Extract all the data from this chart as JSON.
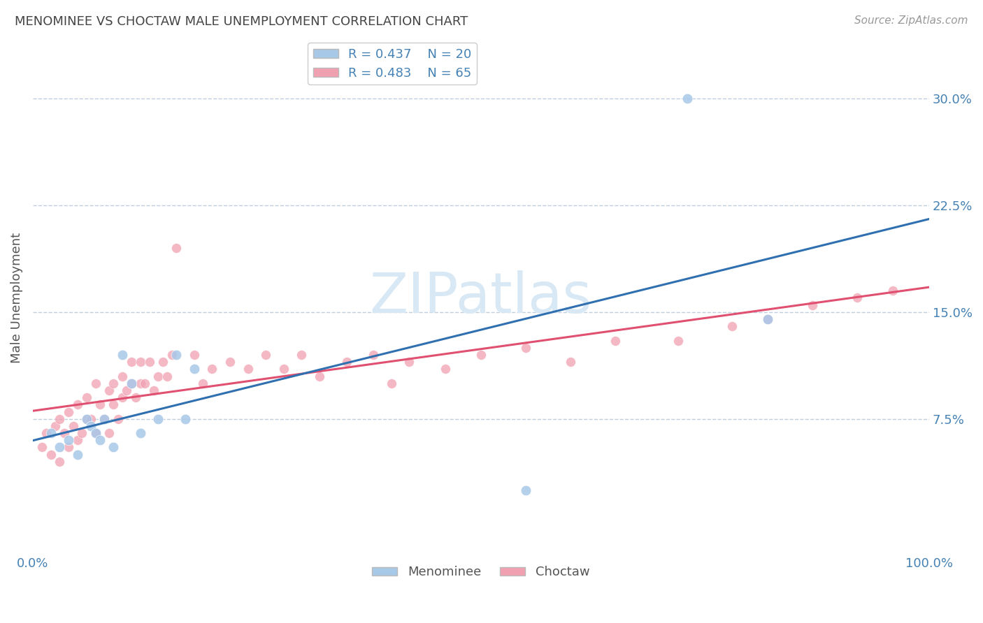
{
  "title": "MENOMINEE VS CHOCTAW MALE UNEMPLOYMENT CORRELATION CHART",
  "source": "Source: ZipAtlas.com",
  "ylabel": "Male Unemployment",
  "xlim": [
    0.0,
    1.0
  ],
  "ylim": [
    -0.02,
    0.34
  ],
  "plot_ylim": [
    -0.02,
    0.34
  ],
  "yticks": [
    0.075,
    0.15,
    0.225,
    0.3
  ],
  "ytick_labels": [
    "7.5%",
    "15.0%",
    "22.5%",
    "30.0%"
  ],
  "xtick_labels": [
    "0.0%",
    "100.0%"
  ],
  "menominee_R": 0.437,
  "menominee_N": 20,
  "choctaw_R": 0.483,
  "choctaw_N": 65,
  "menominee_color": "#a8c8e8",
  "choctaw_color": "#f0a0b0",
  "menominee_line_color": "#3070b0",
  "choctaw_line_color": "#e05070",
  "background_color": "#ffffff",
  "grid_color": "#c0cfe0",
  "watermark_color": "#d8e8f4",
  "menominee_x": [
    0.02,
    0.03,
    0.04,
    0.05,
    0.06,
    0.065,
    0.07,
    0.075,
    0.08,
    0.09,
    0.1,
    0.11,
    0.12,
    0.14,
    0.16,
    0.17,
    0.18,
    0.55,
    0.73,
    0.82
  ],
  "menominee_y": [
    0.065,
    0.055,
    0.06,
    0.05,
    0.075,
    0.07,
    0.065,
    0.06,
    0.075,
    0.055,
    0.12,
    0.1,
    0.065,
    0.075,
    0.12,
    0.075,
    0.11,
    0.025,
    0.3,
    0.145
  ],
  "choctaw_x": [
    0.01,
    0.015,
    0.02,
    0.025,
    0.03,
    0.03,
    0.035,
    0.04,
    0.04,
    0.045,
    0.05,
    0.05,
    0.055,
    0.06,
    0.06,
    0.065,
    0.07,
    0.07,
    0.075,
    0.08,
    0.085,
    0.085,
    0.09,
    0.09,
    0.095,
    0.1,
    0.1,
    0.105,
    0.11,
    0.11,
    0.115,
    0.12,
    0.12,
    0.125,
    0.13,
    0.135,
    0.14,
    0.145,
    0.15,
    0.155,
    0.16,
    0.18,
    0.19,
    0.2,
    0.22,
    0.24,
    0.26,
    0.28,
    0.3,
    0.32,
    0.35,
    0.38,
    0.4,
    0.42,
    0.46,
    0.5,
    0.55,
    0.6,
    0.65,
    0.72,
    0.78,
    0.82,
    0.87,
    0.92,
    0.96
  ],
  "choctaw_y": [
    0.055,
    0.065,
    0.05,
    0.07,
    0.045,
    0.075,
    0.065,
    0.055,
    0.08,
    0.07,
    0.06,
    0.085,
    0.065,
    0.075,
    0.09,
    0.075,
    0.065,
    0.1,
    0.085,
    0.075,
    0.065,
    0.095,
    0.085,
    0.1,
    0.075,
    0.09,
    0.105,
    0.095,
    0.1,
    0.115,
    0.09,
    0.1,
    0.115,
    0.1,
    0.115,
    0.095,
    0.105,
    0.115,
    0.105,
    0.12,
    0.195,
    0.12,
    0.1,
    0.11,
    0.115,
    0.11,
    0.12,
    0.11,
    0.12,
    0.105,
    0.115,
    0.12,
    0.1,
    0.115,
    0.11,
    0.12,
    0.125,
    0.115,
    0.13,
    0.13,
    0.14,
    0.145,
    0.155,
    0.16,
    0.165
  ]
}
